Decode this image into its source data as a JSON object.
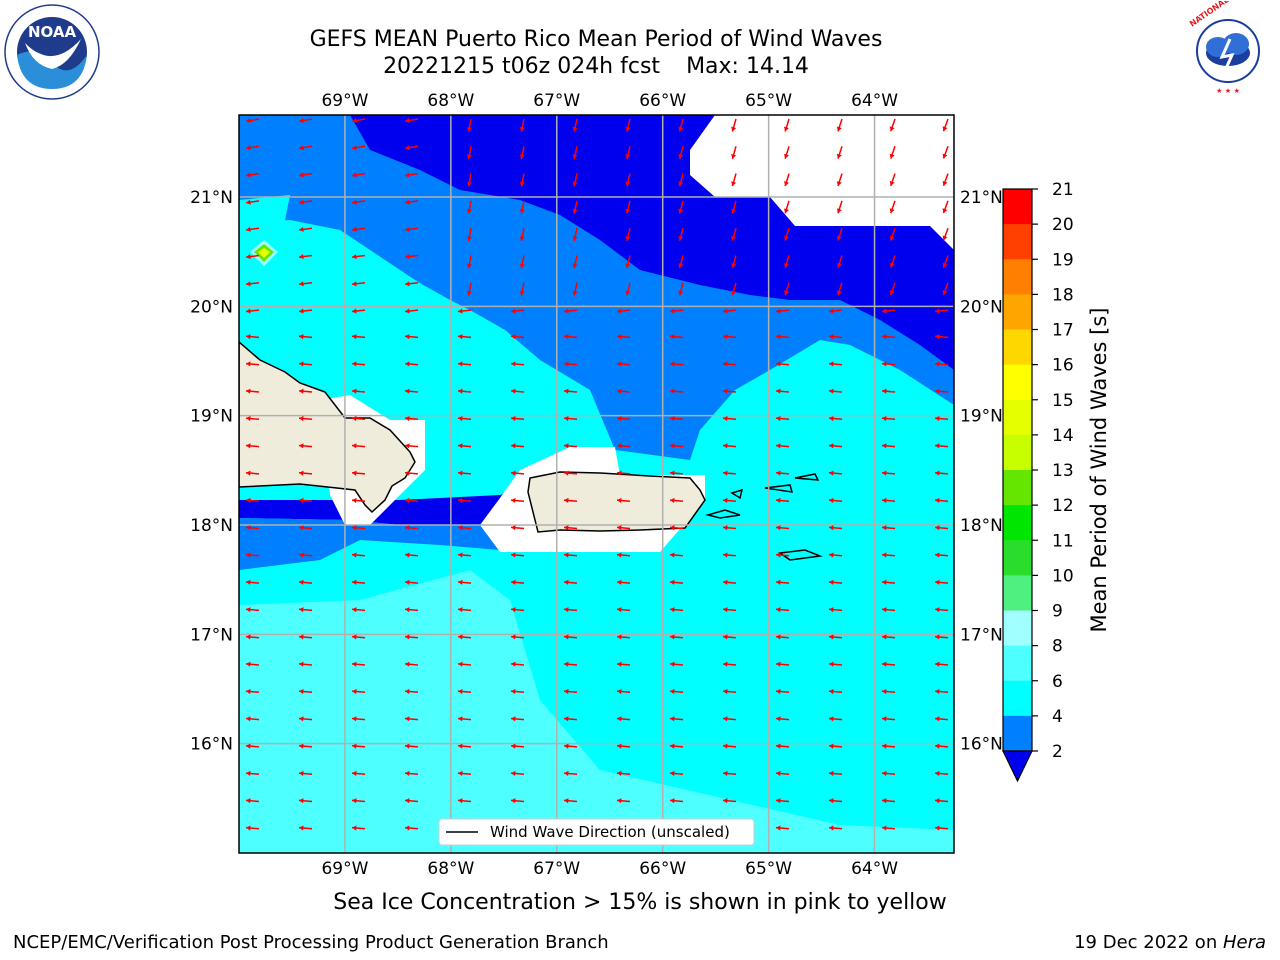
{
  "title": {
    "line1": "GEFS MEAN Puerto Rico Mean Period of Wind Waves",
    "line2_run": "20221215 t06z 024h fcst",
    "line2_max": "Max: 14.14"
  },
  "map": {
    "lon_range": [
      -70.0,
      -63.25
    ],
    "lat_range": [
      15.0,
      21.75
    ],
    "lon_ticks": [
      "69°W",
      "68°W",
      "67°W",
      "66°W",
      "65°W",
      "64°W"
    ],
    "lat_ticks": [
      "21°N",
      "20°N",
      "19°N",
      "18°N",
      "17°N",
      "16°N"
    ],
    "grid": true,
    "legend": "Wind Wave Direction (unscaled)",
    "arrow_color": "#ff0000",
    "land_color": "#efecdc"
  },
  "colorbar": {
    "label": "Mean Period of Wind Waves [s]",
    "ticks": [
      "21",
      "20",
      "19",
      "18",
      "17",
      "16",
      "15",
      "14",
      "13",
      "12",
      "11",
      "10",
      "9",
      "8",
      "6",
      "4",
      "2"
    ],
    "colors": [
      "#0000ee",
      "#0080ff",
      "#00ffff",
      "#4dffff",
      "#a0ffff",
      "#50f080",
      "#2add2a",
      "#00e600",
      "#64e600",
      "#c8ff00",
      "#e6ff00",
      "#ffff00",
      "#ffd700",
      "#ffa500",
      "#ff8000",
      "#ff4000",
      "#ff0000"
    ],
    "extend": "min"
  },
  "subtitle": "Sea Ice Concentration > 15% is shown in pink to yellow",
  "footer": {
    "left": "NCEP/EMC/Verification Post Processing Product Generation Branch",
    "right_date": "19 Dec 2022 on ",
    "right_host": "Hera"
  },
  "logos": {
    "noaa_text": "NOAA",
    "nws_text": "NATIONAL WEATHER SERVICE"
  }
}
